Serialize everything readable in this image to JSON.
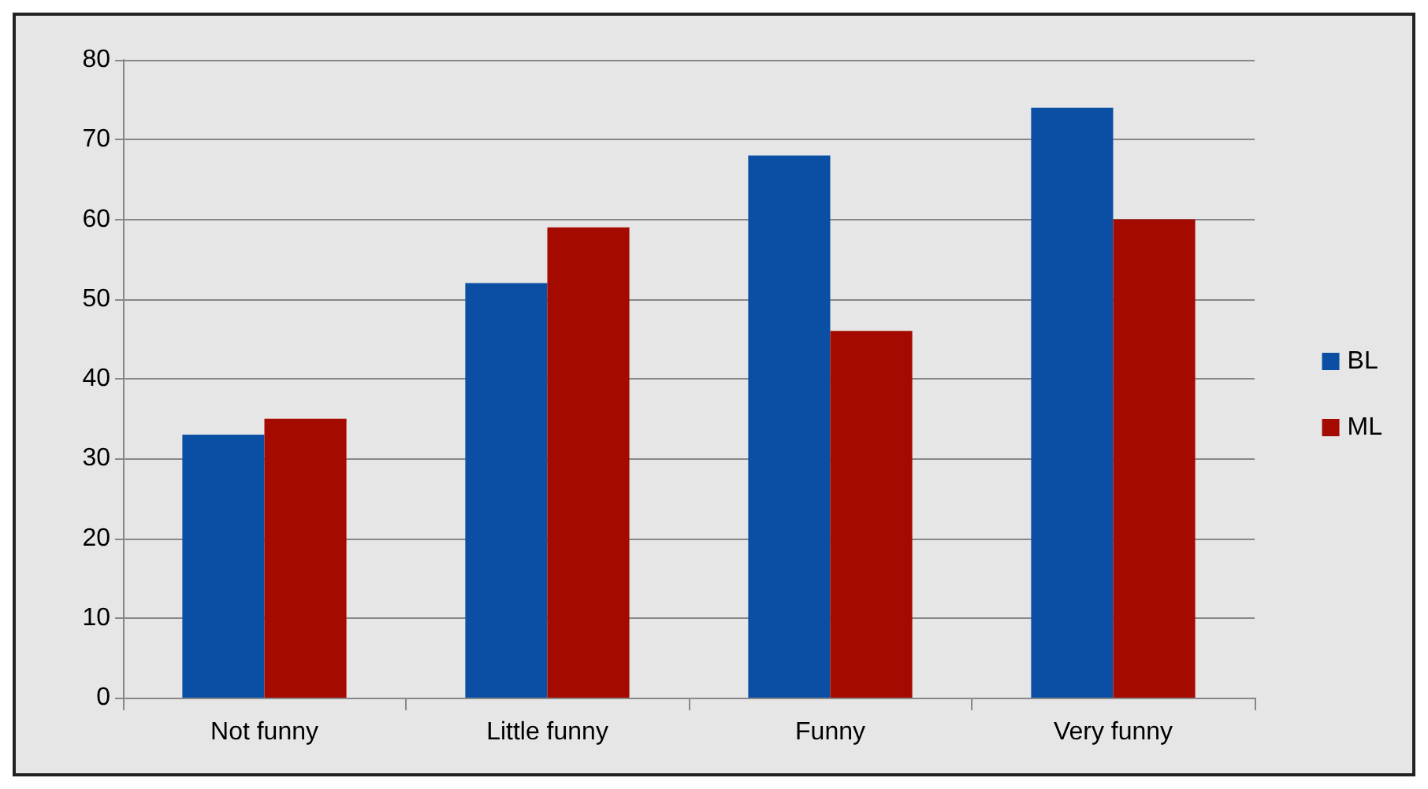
{
  "chart_data": {
    "type": "bar",
    "categories": [
      "Not funny",
      "Little funny",
      "Funny",
      "Very funny"
    ],
    "series": [
      {
        "name": "BL",
        "color": "#0a4fa3",
        "values": [
          33,
          52,
          68,
          74
        ]
      },
      {
        "name": "ML",
        "color": "#a50a00",
        "values": [
          35,
          59,
          46,
          60
        ]
      }
    ],
    "ylim": [
      0,
      80
    ],
    "yticks": [
      0,
      10,
      20,
      30,
      40,
      50,
      60,
      70,
      80
    ],
    "grid": "y",
    "legend": "right"
  }
}
